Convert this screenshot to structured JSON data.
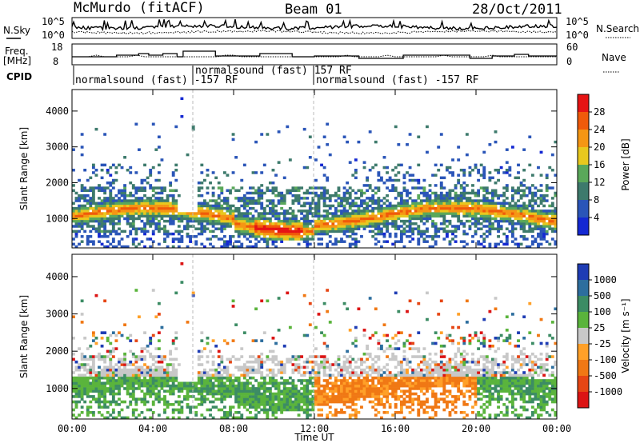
{
  "header": {
    "station": "McMurdo (fitACF)",
    "beam": "Beam 01",
    "date": "28/Oct/2011"
  },
  "top_panels": {
    "nsky_label": "N.Sky",
    "nsearch_label": "N.Search",
    "nsky_ticks": [
      "10^5",
      "10^0"
    ],
    "nsearch_ticks": [
      "10^5",
      "10^0"
    ],
    "freq_label_1": "Freq.",
    "freq_label_2": "[MHz]",
    "freq_ticks": [
      "18",
      "8"
    ],
    "nave_label": "Nave",
    "nave_ticks": [
      "60",
      "0"
    ],
    "cpid_label": "CPID",
    "cpid_segments": [
      {
        "text": "normalsound (fast) -157 RF",
        "start_hour": 0
      },
      {
        "text": "normalsound (fast) 157 RF",
        "start_hour": 6
      },
      {
        "text": "normalsound (fast) -157 RF",
        "start_hour": 12
      }
    ]
  },
  "colors": {
    "power": [
      "#1428d2",
      "#2a55b8",
      "#3d7a6c",
      "#5aa85a",
      "#e8c81e",
      "#f59614",
      "#f05a0a",
      "#e61414"
    ],
    "velocity": [
      "#1e3cb4",
      "#2d6e9e",
      "#3c8c64",
      "#5ab43c",
      "#c8c8c8",
      "#ffa028",
      "#f07814",
      "#e64614",
      "#dc1414"
    ]
  },
  "chart_data": [
    {
      "type": "heatmap",
      "title": "Power",
      "xlabel": "Time UT",
      "ylabel": "Slant Range [km]",
      "xlim_hours": [
        0,
        24
      ],
      "ylim_km": [
        180,
        4600
      ],
      "x_ticks": [
        "00:00",
        "04:00",
        "08:00",
        "12:00",
        "16:00",
        "20:00",
        "00:00"
      ],
      "y_ticks": [
        1000,
        2000,
        3000,
        4000
      ],
      "colorbar": {
        "label": "Power [dB]",
        "ticks": [
          "4",
          "8",
          "12",
          "16",
          "20",
          "24",
          "28"
        ],
        "range_db": [
          0,
          32
        ]
      }
    },
    {
      "type": "heatmap",
      "title": "Velocity",
      "xlabel": "Time UT",
      "ylabel": "Slant Range [km]",
      "xlim_hours": [
        0,
        24
      ],
      "ylim_km": [
        180,
        4600
      ],
      "x_ticks": [
        "00:00",
        "04:00",
        "08:00",
        "12:00",
        "16:00",
        "20:00",
        "00:00"
      ],
      "y_ticks": [
        1000,
        2000,
        3000,
        4000
      ],
      "colorbar": {
        "label": "Velocity [m s⁻¹]",
        "ticks": [
          "1000",
          "500",
          "100",
          "25",
          "-25",
          "-100",
          "-500",
          "-1000"
        ]
      }
    }
  ]
}
